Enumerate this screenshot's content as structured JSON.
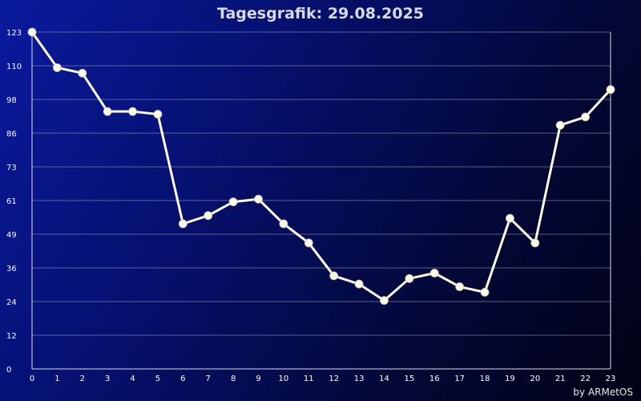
{
  "title": "Tagesgrafik: 29.08.2025",
  "credit": "by ARMetOS",
  "colors": {
    "line": "#fffde6",
    "grid": "#9aa3b8",
    "axis": "#d9dde6",
    "text": "#ffffff"
  },
  "chart_data": {
    "type": "line",
    "title": "Tagesgrafik: 29.08.2025",
    "xlabel": "",
    "ylabel": "",
    "categories": [
      "0",
      "1",
      "2",
      "3",
      "4",
      "5",
      "6",
      "7",
      "8",
      "9",
      "10",
      "11",
      "12",
      "13",
      "14",
      "15",
      "16",
      "17",
      "18",
      "19",
      "20",
      "21",
      "22",
      "23"
    ],
    "x": [
      0,
      1,
      2,
      3,
      4,
      5,
      6,
      7,
      8,
      9,
      10,
      11,
      12,
      13,
      14,
      15,
      16,
      17,
      18,
      19,
      20,
      21,
      22,
      23
    ],
    "values": [
      123,
      110,
      108,
      94,
      94,
      93,
      53,
      56,
      61,
      62,
      53,
      46,
      34,
      31,
      25,
      33,
      35,
      30,
      28,
      55,
      46,
      89,
      92,
      102
    ],
    "ylim": [
      0,
      123
    ],
    "yticks": [
      "0",
      "12",
      "24",
      "36",
      "49",
      "61",
      "73",
      "86",
      "98",
      "110",
      "123"
    ],
    "grid": true,
    "legend": "none"
  }
}
